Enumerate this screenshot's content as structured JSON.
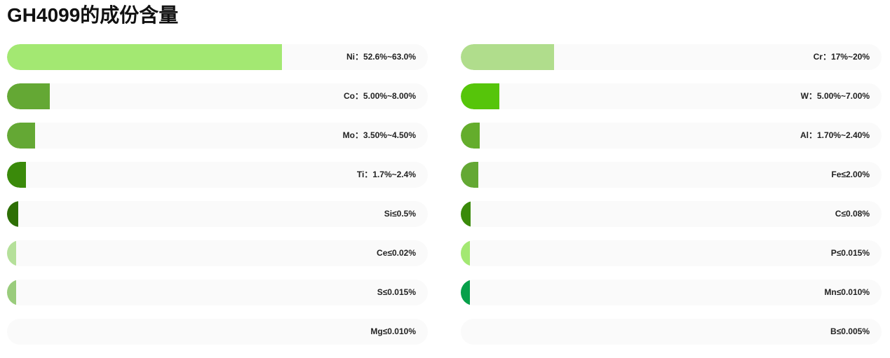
{
  "title": "GH4099的成份含量",
  "chart_data": {
    "type": "bar",
    "orientation": "horizontal",
    "title": "GH4099的成份含量",
    "xlim": [
      0,
      100
    ],
    "columns": [
      {
        "bars": [
          {
            "label": "Ni：52.6%~63.0%",
            "value": 65.3,
            "color": "#a3e872"
          },
          {
            "label": "Co：5.00%~8.00%",
            "value": 10.2,
            "color": "#64a834"
          },
          {
            "label": "Mo：3.50%~4.50%",
            "value": 6.7,
            "color": "#64a834"
          },
          {
            "label": "Ti：1.7%~2.4%",
            "value": 4.5,
            "color": "#3a8a0a"
          },
          {
            "label": "Si≤0.5%",
            "value": 2.7,
            "color": "#2e6f05"
          },
          {
            "label": "Ce≤0.02%",
            "value": 2.2,
            "color": "#b5e09a"
          },
          {
            "label": "S≤0.015%",
            "value": 2.2,
            "color": "#9acc7c"
          },
          {
            "label": "Mg≤0.010%",
            "value": 0,
            "color": "#9acc7c"
          }
        ]
      },
      {
        "bars": [
          {
            "label": "Cr：17%~20%",
            "value": 22.2,
            "color": "#b0dd8c"
          },
          {
            "label": "W：5.00%~7.00%",
            "value": 9.2,
            "color": "#56c50a"
          },
          {
            "label": "Al：1.70%~2.40%",
            "value": 4.5,
            "color": "#64ad2c"
          },
          {
            "label": "Fe≤2.00%",
            "value": 4.2,
            "color": "#64a834"
          },
          {
            "label": "C≤0.08%",
            "value": 2.3,
            "color": "#3a8a0a"
          },
          {
            "label": "P≤0.015%",
            "value": 2.2,
            "color": "#a3e872"
          },
          {
            "label": "Mn≤0.010%",
            "value": 2.2,
            "color": "#07a04a"
          },
          {
            "label": "B≤0.005%",
            "value": 0,
            "color": "#9acc7c"
          }
        ]
      }
    ]
  }
}
